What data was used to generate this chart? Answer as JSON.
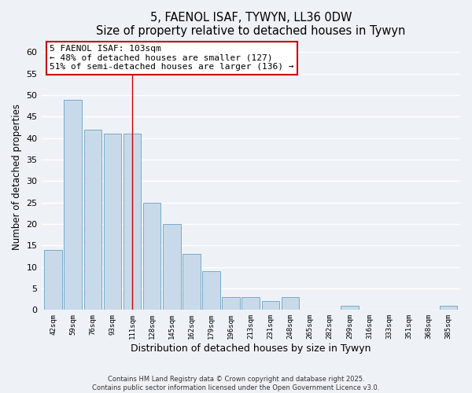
{
  "title": "5, FAENOL ISAF, TYWYN, LL36 0DW",
  "subtitle": "Size of property relative to detached houses in Tywyn",
  "xlabel": "Distribution of detached houses by size in Tywyn",
  "ylabel": "Number of detached properties",
  "bar_color": "#c8daea",
  "bar_edge_color": "#7aaac8",
  "categories": [
    "42sqm",
    "59sqm",
    "76sqm",
    "93sqm",
    "111sqm",
    "128sqm",
    "145sqm",
    "162sqm",
    "179sqm",
    "196sqm",
    "213sqm",
    "231sqm",
    "248sqm",
    "265sqm",
    "282sqm",
    "299sqm",
    "316sqm",
    "333sqm",
    "351sqm",
    "368sqm",
    "385sqm"
  ],
  "values": [
    14,
    49,
    42,
    41,
    41,
    25,
    20,
    13,
    9,
    3,
    3,
    2,
    3,
    0,
    0,
    1,
    0,
    0,
    0,
    0,
    1
  ],
  "ylim": [
    0,
    62
  ],
  "yticks": [
    0,
    5,
    10,
    15,
    20,
    25,
    30,
    35,
    40,
    45,
    50,
    55,
    60
  ],
  "annotation_title": "5 FAENOL ISAF: 103sqm",
  "annotation_line1": "← 48% of detached houses are smaller (127)",
  "annotation_line2": "51% of semi-detached houses are larger (136) →",
  "footer_line1": "Contains HM Land Registry data © Crown copyright and database right 2025.",
  "footer_line2": "Contains public sector information licensed under the Open Government Licence v3.0.",
  "background_color": "#eef2f7",
  "grid_color": "#ffffff",
  "vline_index": 4,
  "vline_color": "#cc0000"
}
